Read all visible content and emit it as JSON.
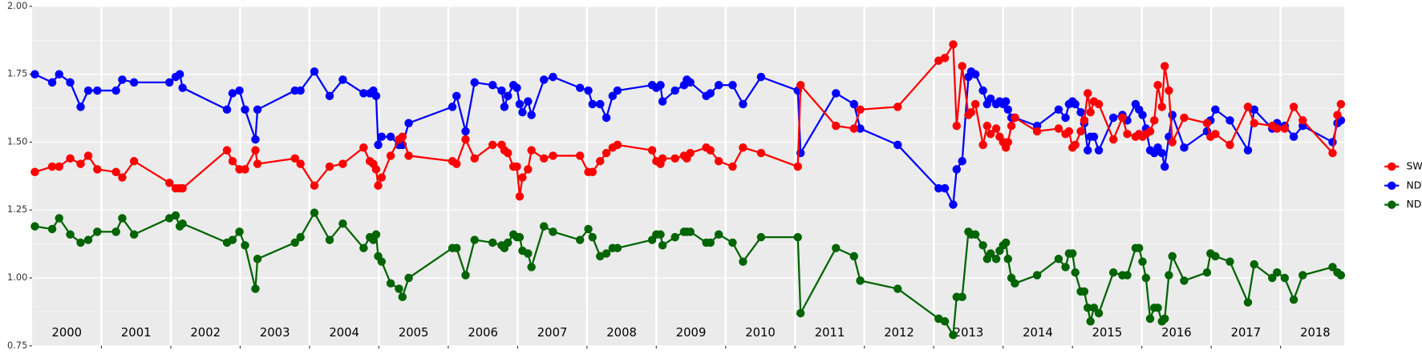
{
  "chart_data": {
    "type": "line",
    "x": [
      2000.04,
      2000.29,
      2000.39,
      2000.55,
      2000.7,
      2000.81,
      2000.94,
      2001.21,
      2001.3,
      2001.47,
      2001.98,
      2002.07,
      2002.13,
      2002.17,
      2002.81,
      2002.89,
      2002.99,
      2003.07,
      2003.22,
      2003.25,
      2003.79,
      2003.87,
      2004.07,
      2004.29,
      2004.48,
      2004.78,
      2004.87,
      2004.92,
      2004.96,
      2004.99,
      2005.04,
      2005.17,
      2005.29,
      2005.34,
      2005.43,
      2006.06,
      2006.12,
      2006.25,
      2006.38,
      2006.64,
      2006.77,
      2006.81,
      2006.86,
      2006.94,
      2006.99,
      2007.03,
      2007.07,
      2007.15,
      2007.2,
      2007.38,
      2007.51,
      2007.9,
      2008.02,
      2008.08,
      2008.19,
      2008.28,
      2008.37,
      2008.44,
      2008.94,
      2009.0,
      2009.06,
      2009.09,
      2009.27,
      2009.4,
      2009.44,
      2009.49,
      2009.72,
      2009.78,
      2009.9,
      2010.1,
      2010.25,
      2010.51,
      2011.04,
      2011.08,
      2011.59,
      2011.85,
      2011.94,
      2012.48,
      2013.07,
      2013.16,
      2013.28,
      2013.33,
      2013.41,
      2013.5,
      2013.54,
      2013.6,
      2013.71,
      2013.77,
      2013.82,
      2013.9,
      2013.95,
      2014.0,
      2014.04,
      2014.07,
      2014.12,
      2014.17,
      2014.49,
      2014.8,
      2014.9,
      2014.95,
      2015.0,
      2015.04,
      2015.12,
      2015.17,
      2015.22,
      2015.26,
      2015.31,
      2015.38,
      2015.59,
      2015.72,
      2015.79,
      2015.91,
      2015.96,
      2016.01,
      2016.06,
      2016.12,
      2016.18,
      2016.23,
      2016.29,
      2016.33,
      2016.39,
      2016.44,
      2016.61,
      2016.94,
      2016.99,
      2017.06,
      2017.27,
      2017.53,
      2017.62,
      2017.88,
      2017.95,
      2018.06,
      2018.19,
      2018.32,
      2018.75,
      2018.82,
      2018.87
    ],
    "series": [
      {
        "name": "SWIR",
        "color": "#ff0000",
        "values": [
          1.39,
          1.41,
          1.41,
          1.44,
          1.42,
          1.45,
          1.4,
          1.39,
          1.37,
          1.43,
          1.35,
          1.33,
          1.33,
          1.33,
          1.47,
          1.43,
          1.4,
          1.4,
          1.47,
          1.42,
          1.44,
          1.42,
          1.34,
          1.41,
          1.42,
          1.48,
          1.43,
          1.42,
          1.4,
          1.34,
          1.37,
          1.45,
          1.51,
          1.52,
          1.45,
          1.43,
          1.42,
          1.51,
          1.44,
          1.49,
          1.49,
          1.47,
          1.46,
          1.41,
          1.41,
          1.3,
          1.37,
          1.4,
          1.47,
          1.44,
          1.45,
          1.45,
          1.39,
          1.39,
          1.43,
          1.46,
          1.48,
          1.49,
          1.47,
          1.43,
          1.42,
          1.44,
          1.44,
          1.45,
          1.44,
          1.46,
          1.48,
          1.47,
          1.43,
          1.41,
          1.48,
          1.46,
          1.41,
          1.71,
          1.56,
          1.55,
          1.62,
          1.63,
          1.8,
          1.81,
          1.86,
          1.56,
          1.78,
          1.6,
          1.61,
          1.64,
          1.49,
          1.56,
          1.53,
          1.55,
          1.52,
          1.5,
          1.48,
          1.5,
          1.56,
          1.59,
          1.54,
          1.55,
          1.53,
          1.54,
          1.48,
          1.49,
          1.54,
          1.58,
          1.68,
          1.61,
          1.65,
          1.64,
          1.51,
          1.59,
          1.53,
          1.52,
          1.53,
          1.52,
          1.53,
          1.54,
          1.58,
          1.71,
          1.63,
          1.78,
          1.69,
          1.5,
          1.59,
          1.57,
          1.52,
          1.53,
          1.49,
          1.63,
          1.57,
          1.56,
          1.55,
          1.55,
          1.63,
          1.58,
          1.46,
          1.6,
          1.64
        ]
      },
      {
        "name": "NDVI",
        "color": "#0000ff",
        "values": [
          1.75,
          1.72,
          1.75,
          1.72,
          1.63,
          1.69,
          1.69,
          1.69,
          1.73,
          1.72,
          1.72,
          1.74,
          1.75,
          1.7,
          1.62,
          1.68,
          1.69,
          1.62,
          1.51,
          1.62,
          1.69,
          1.69,
          1.76,
          1.67,
          1.73,
          1.68,
          1.68,
          1.69,
          1.67,
          1.49,
          1.52,
          1.52,
          1.49,
          1.49,
          1.57,
          1.63,
          1.67,
          1.54,
          1.72,
          1.71,
          1.69,
          1.63,
          1.67,
          1.71,
          1.7,
          1.64,
          1.61,
          1.65,
          1.6,
          1.73,
          1.74,
          1.7,
          1.69,
          1.64,
          1.64,
          1.59,
          1.67,
          1.69,
          1.71,
          1.7,
          1.71,
          1.65,
          1.69,
          1.71,
          1.73,
          1.72,
          1.67,
          1.68,
          1.71,
          1.71,
          1.64,
          1.74,
          1.69,
          1.46,
          1.68,
          1.64,
          1.55,
          1.49,
          1.33,
          1.33,
          1.27,
          1.4,
          1.43,
          1.74,
          1.76,
          1.75,
          1.69,
          1.64,
          1.66,
          1.64,
          1.65,
          1.64,
          1.65,
          1.62,
          1.59,
          1.59,
          1.56,
          1.62,
          1.59,
          1.64,
          1.65,
          1.64,
          1.61,
          1.57,
          1.47,
          1.52,
          1.52,
          1.47,
          1.59,
          1.6,
          1.58,
          1.64,
          1.62,
          1.6,
          1.55,
          1.47,
          1.46,
          1.48,
          1.46,
          1.41,
          1.52,
          1.6,
          1.48,
          1.54,
          1.58,
          1.62,
          1.58,
          1.47,
          1.62,
          1.55,
          1.57,
          1.56,
          1.52,
          1.56,
          1.5,
          1.57,
          1.58
        ]
      },
      {
        "name": "NDWI",
        "color": "#006400",
        "values": [
          1.19,
          1.18,
          1.22,
          1.16,
          1.13,
          1.14,
          1.17,
          1.17,
          1.22,
          1.16,
          1.22,
          1.23,
          1.19,
          1.2,
          1.13,
          1.14,
          1.17,
          1.12,
          0.96,
          1.07,
          1.13,
          1.15,
          1.24,
          1.14,
          1.2,
          1.11,
          1.15,
          1.14,
          1.16,
          1.08,
          1.06,
          0.98,
          0.96,
          0.93,
          1.0,
          1.11,
          1.11,
          1.01,
          1.14,
          1.13,
          1.12,
          1.11,
          1.13,
          1.16,
          1.15,
          1.15,
          1.1,
          1.09,
          1.04,
          1.19,
          1.17,
          1.14,
          1.18,
          1.15,
          1.08,
          1.09,
          1.11,
          1.11,
          1.14,
          1.16,
          1.16,
          1.12,
          1.15,
          1.17,
          1.17,
          1.17,
          1.13,
          1.13,
          1.16,
          1.13,
          1.06,
          1.15,
          1.15,
          0.87,
          1.11,
          1.08,
          0.99,
          0.96,
          0.85,
          0.84,
          0.79,
          0.93,
          0.93,
          1.17,
          1.16,
          1.16,
          1.12,
          1.07,
          1.09,
          1.07,
          1.1,
          1.12,
          1.13,
          1.07,
          1.0,
          0.98,
          1.01,
          1.07,
          1.04,
          1.09,
          1.09,
          1.02,
          0.95,
          0.95,
          0.89,
          0.84,
          0.89,
          0.87,
          1.02,
          1.01,
          1.01,
          1.11,
          1.11,
          1.06,
          1.0,
          0.85,
          0.89,
          0.89,
          0.84,
          0.85,
          1.01,
          1.08,
          0.99,
          1.02,
          1.09,
          1.08,
          1.06,
          0.91,
          1.05,
          1.0,
          1.02,
          1.0,
          0.92,
          1.01,
          1.04,
          1.02,
          1.01
        ]
      }
    ],
    "xlim": [
      2000,
      2018.92
    ],
    "xticks": [
      2001,
      2002,
      2003,
      2004,
      2005,
      2006,
      2007,
      2008,
      2009,
      2010,
      2011,
      2012,
      2013,
      2014,
      2015,
      2016,
      2017,
      2018
    ],
    "year_labels": [
      "2000",
      "2001",
      "2002",
      "2003",
      "2004",
      "2005",
      "2006",
      "2007",
      "2008",
      "2009",
      "2010",
      "2011",
      "2012",
      "2013",
      "2014",
      "2015",
      "2016",
      "2017",
      "2018"
    ],
    "ylim": [
      0.75,
      2.0
    ],
    "yticks": [
      {
        "value": 0.75,
        "label": "0.75"
      },
      {
        "value": 1.0,
        "label": "1.00"
      },
      {
        "value": 1.25,
        "label": "1.25"
      },
      {
        "value": 1.5,
        "label": "1.50"
      },
      {
        "value": 1.75,
        "label": "1.75"
      },
      {
        "value": 2.0,
        "label": "2.00"
      }
    ],
    "grid": true,
    "minor_grid": true,
    "legend_position": "right"
  }
}
